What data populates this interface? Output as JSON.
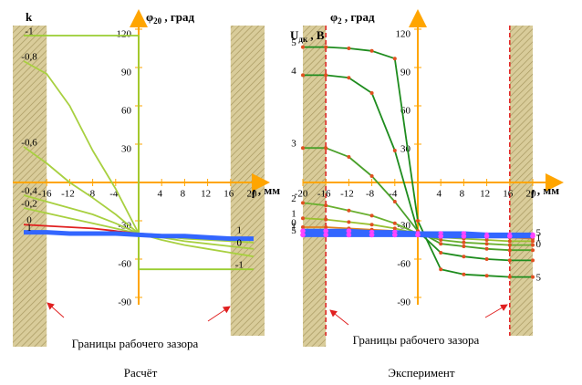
{
  "chart_data": [
    {
      "type": "line",
      "corner_label": "k",
      "y_label": {
        "symbol": "φ",
        "subscript": "20",
        "text": " , град"
      },
      "x_label": {
        "symbol": "l",
        "text": " , мм"
      },
      "xlim": [
        -20,
        20
      ],
      "ylim": [
        -90,
        120
      ],
      "xticks": [
        -16,
        -12,
        -8,
        -4,
        4,
        8,
        12,
        16,
        20
      ],
      "yticks": [
        120,
        90,
        60,
        30,
        -30,
        -60,
        -90
      ],
      "gap_bounds": [
        -16,
        16
      ],
      "boundary_lines": false,
      "x": [
        -20,
        -16,
        -12,
        -8,
        -4,
        0,
        4,
        8,
        12,
        16,
        20
      ],
      "series": [
        {
          "name": "-1",
          "color": "#9acd32",
          "x": [
            -20,
            -16,
            -12,
            -8,
            -4,
            0,
            0,
            4,
            8,
            12,
            16,
            20
          ],
          "values": [
            115,
            115,
            115,
            115,
            115,
            115,
            -68,
            -68,
            -68,
            -68,
            -68,
            -68
          ]
        },
        {
          "name": "-0,8",
          "color": "#a8d040",
          "values": [
            95,
            85,
            60,
            25,
            -5,
            -40,
            -45,
            -49,
            -52,
            -55,
            -58
          ]
        },
        {
          "name": "-0,6",
          "color": "#a8d040",
          "values": [
            28,
            15,
            0,
            -12,
            -25,
            -40,
            -43,
            -46,
            -48,
            -50,
            -52
          ]
        },
        {
          "name": "-0,4",
          "color": "#a8d040",
          "values": [
            -10,
            -15,
            -20,
            -25,
            -32,
            -40,
            -42,
            -44,
            -45,
            -46,
            -47
          ]
        },
        {
          "name": "-0,2",
          "color": "#a8d040",
          "values": [
            -20,
            -24,
            -28,
            -32,
            -36,
            -40,
            -41,
            -42,
            -43,
            -43,
            -44
          ]
        },
        {
          "name": "0",
          "color": "#e02020",
          "values": [
            -33,
            -34,
            -35,
            -36,
            -38,
            -40,
            -41,
            -42,
            -43,
            -44,
            -45
          ]
        },
        {
          "name": "1",
          "color": "#3366ff",
          "values": [
            -39,
            -39,
            -40,
            -40,
            -40,
            -41,
            -42,
            -42,
            -43,
            -44,
            -44
          ]
        }
      ],
      "annotations": [
        {
          "text": "1",
          "x": 17.5,
          "y": -38,
          "color": "#2020c0"
        },
        {
          "text": "0",
          "x": 17.5,
          "y": -48,
          "color": "#e02020"
        },
        {
          "text": "-1",
          "x": 17.5,
          "y": -65,
          "color": "#000000"
        }
      ],
      "boundary_caption": "Границы рабочего зазора",
      "caption": "Расчёт"
    },
    {
      "type": "line",
      "corner_label": {
        "symbol": "U",
        "subscript": "дк",
        "text": " , В"
      },
      "y_label": {
        "symbol": "φ",
        "subscript": "2",
        "text": " , град"
      },
      "x_label": {
        "symbol": "l",
        "text": " , мм"
      },
      "xlim": [
        -20,
        20
      ],
      "ylim": [
        -90,
        120
      ],
      "xticks": [
        -20,
        -16,
        -12,
        -8,
        -4,
        4,
        8,
        12,
        16,
        20
      ],
      "yticks": [
        120,
        90,
        60,
        30,
        -30,
        -60,
        -90
      ],
      "gap_bounds": [
        -16,
        16
      ],
      "boundary_lines": true,
      "markers": true,
      "x": [
        -20,
        -16,
        -12,
        -8,
        -4,
        0,
        4,
        8,
        12,
        16,
        20
      ],
      "series": [
        {
          "name": "5",
          "color": "#1e8c1e",
          "values": [
            106,
            106,
            105,
            103,
            97,
            -30,
            -68,
            -72,
            -73,
            -74,
            -74
          ]
        },
        {
          "name": "4",
          "color": "#1e8c1e",
          "values": [
            84,
            84,
            82,
            70,
            25,
            -38,
            -55,
            -58,
            -60,
            -61,
            -61
          ]
        },
        {
          "name": "3",
          "color": "#4aa02a",
          "values": [
            27,
            27,
            20,
            5,
            -15,
            -38,
            -48,
            -50,
            -52,
            -53,
            -53
          ]
        },
        {
          "name": "2",
          "color": "#6ab030",
          "values": [
            -16,
            -18,
            -22,
            -26,
            -32,
            -40,
            -45,
            -47,
            -48,
            -49,
            -49
          ]
        },
        {
          "name": "1",
          "color": "#9ac030",
          "values": [
            -28,
            -29,
            -31,
            -33,
            -36,
            -40,
            -43,
            -44,
            -45,
            -46,
            -46
          ]
        },
        {
          "name": "0",
          "color": "#e08020",
          "values": [
            -35,
            -35,
            -36,
            -37,
            -38,
            -40,
            -41,
            -42,
            -43,
            -43,
            -44
          ]
        },
        {
          "name": "1",
          "color": "#3366ff",
          "values": [
            -38,
            -38,
            -38,
            -39,
            -39,
            -40,
            -40,
            -40,
            -41,
            -41,
            -41
          ]
        },
        {
          "name": "5",
          "color": "#3366ff",
          "values": [
            -41,
            -41,
            -41,
            -41,
            -41,
            -41,
            -42,
            -42,
            -42,
            -42,
            -42
          ]
        }
      ],
      "annotations": [
        {
          "text": "5",
          "x": 21,
          "y": -40,
          "color": "#2020c0"
        },
        {
          "text": "1",
          "x": 21,
          "y": -44,
          "color": "#e02020"
        },
        {
          "text": "0",
          "x": 21,
          "y": -49,
          "color": "#e02020"
        },
        {
          "text": "5",
          "x": 21,
          "y": -75,
          "color": "#1e8c1e"
        }
      ],
      "boundary_caption": "Границы рабочего зазора",
      "caption": "Эксперимент"
    }
  ]
}
